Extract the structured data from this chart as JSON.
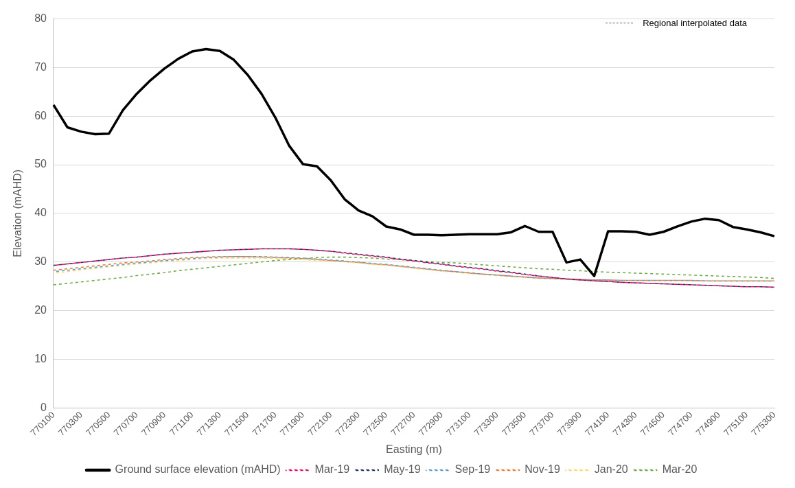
{
  "chart_data": {
    "type": "line",
    "xlabel": "Easting (m)",
    "ylabel": "Elevation (mAHD)",
    "categories": [
      "770100",
      null,
      "770300",
      null,
      "770500",
      null,
      "770700",
      null,
      "770900",
      null,
      "771100",
      null,
      "771300",
      null,
      "771500",
      null,
      "771700",
      null,
      "771900",
      null,
      "772100",
      null,
      "772300",
      null,
      "772500",
      null,
      "772700",
      null,
      "772900",
      null,
      "773100",
      null,
      "773300",
      null,
      "773500",
      null,
      "773700",
      null,
      "773900",
      null,
      "774100",
      null,
      "774300",
      null,
      "774500",
      null,
      "774700",
      null,
      "774900",
      null,
      "775100",
      null,
      "775300"
    ],
    "series": [
      {
        "name": "Ground surface elevation (mAHD)",
        "color": "#000000",
        "line_style": "solid",
        "values": [
          62.3,
          57.7,
          56.8,
          56.3,
          56.4,
          61.2,
          64.6,
          67.4,
          69.8,
          71.8,
          73.3,
          73.8,
          73.4,
          71.6,
          68.5,
          64.6,
          59.7,
          53.9,
          50.1,
          49.7,
          46.8,
          42.9,
          40.6,
          39.4,
          37.3,
          36.7,
          35.6,
          35.6,
          35.5,
          35.6,
          35.7,
          35.7,
          35.7,
          36.1,
          37.4,
          36.2,
          36.2,
          29.9,
          30.5,
          27.1,
          36.3,
          36.3,
          36.2,
          35.6,
          36.2,
          37.3,
          38.3,
          38.9,
          38.6,
          37.2,
          36.7,
          36.1,
          35.3
        ]
      },
      {
        "name": "Mar-19",
        "color": "#ff0066",
        "line_style": "dashed",
        "values": [
          29.3,
          29.6,
          29.9,
          30.2,
          30.5,
          30.8,
          31.0,
          31.3,
          31.6,
          31.8,
          32.0,
          32.2,
          32.4,
          32.5,
          32.6,
          32.7,
          32.7,
          32.7,
          32.6,
          32.4,
          32.2,
          31.8,
          31.5,
          31.2,
          30.9,
          30.5,
          30.2,
          29.8,
          29.5,
          29.1,
          28.8,
          28.5,
          28.1,
          27.8,
          27.4,
          27.1,
          26.8,
          26.5,
          26.3,
          26.1,
          26.0,
          25.8,
          25.7,
          25.6,
          25.5,
          25.4,
          25.3,
          25.2,
          25.1,
          25.0,
          24.9,
          24.9,
          24.8
        ]
      },
      {
        "name": "May-19",
        "color": "#1f3864",
        "line_style": "dashed",
        "values": [
          29.3,
          29.6,
          29.9,
          30.2,
          30.5,
          30.8,
          31.0,
          31.3,
          31.6,
          31.8,
          32.0,
          32.2,
          32.4,
          32.5,
          32.6,
          32.7,
          32.7,
          32.7,
          32.6,
          32.4,
          32.2,
          31.9,
          31.6,
          31.3,
          31.0,
          30.6,
          30.3,
          29.9,
          29.6,
          29.2,
          28.9,
          28.6,
          28.2,
          27.9,
          27.5,
          27.1,
          26.8,
          26.5,
          26.3,
          26.1,
          26.0,
          25.8,
          25.7,
          25.6,
          25.5,
          25.4,
          25.3,
          25.2,
          25.1,
          25.0,
          24.9,
          24.9,
          24.8
        ]
      },
      {
        "name": "Sep-19",
        "color": "#5b9bd5",
        "line_style": "dashed",
        "values": [
          28.0,
          28.3,
          28.6,
          28.9,
          29.2,
          29.5,
          29.8,
          30.0,
          30.3,
          30.5,
          30.7,
          30.9,
          31.0,
          31.1,
          31.1,
          31.1,
          31.0,
          30.9,
          30.8,
          30.6,
          30.4,
          30.2,
          30.0,
          29.7,
          29.5,
          29.2,
          28.9,
          28.6,
          28.3,
          28.0,
          27.8,
          27.5,
          27.3,
          27.1,
          26.9,
          26.7,
          26.6,
          26.5,
          26.4,
          26.3,
          26.3,
          26.2,
          26.2,
          26.2,
          26.2,
          26.2,
          26.2,
          26.1,
          26.1,
          26.1,
          26.1,
          26.1,
          26.1
        ]
      },
      {
        "name": "Nov-19",
        "color": "#ed7d31",
        "line_style": "dashed",
        "values": [
          28.3,
          28.6,
          28.9,
          29.2,
          29.5,
          29.8,
          30.0,
          30.2,
          30.5,
          30.7,
          30.9,
          31.0,
          31.1,
          31.1,
          31.1,
          31.0,
          30.9,
          30.8,
          30.7,
          30.5,
          30.3,
          30.1,
          29.9,
          29.6,
          29.4,
          29.1,
          28.8,
          28.5,
          28.2,
          28.0,
          27.7,
          27.5,
          27.3,
          27.1,
          26.9,
          26.7,
          26.6,
          26.5,
          26.4,
          26.3,
          26.3,
          26.2,
          26.2,
          26.2,
          26.2,
          26.2,
          26.2,
          26.1,
          26.1,
          26.1,
          26.1,
          26.1,
          26.1
        ]
      },
      {
        "name": "Jan-20",
        "color": "#ffd966",
        "line_style": "dashed",
        "values": [
          27.7,
          28.0,
          28.4,
          28.7,
          29.0,
          29.3,
          29.6,
          29.8,
          30.1,
          30.3,
          30.5,
          30.7,
          30.8,
          30.8,
          30.8,
          30.8,
          30.7,
          30.6,
          30.5,
          30.3,
          30.2,
          30.0,
          29.8,
          29.5,
          29.3,
          29.0,
          28.7,
          28.4,
          28.1,
          27.9,
          27.6,
          27.4,
          27.2,
          27.0,
          26.8,
          26.6,
          26.5,
          26.4,
          26.3,
          26.2,
          26.2,
          26.2,
          26.1,
          26.1,
          26.1,
          26.1,
          26.1,
          26.1,
          26.0,
          26.0,
          26.0,
          26.0,
          26.0
        ]
      },
      {
        "name": "Mar-20",
        "color": "#70ad47",
        "line_style": "dashed",
        "values": [
          25.3,
          25.6,
          25.9,
          26.2,
          26.5,
          26.8,
          27.2,
          27.5,
          27.8,
          28.2,
          28.5,
          28.8,
          29.1,
          29.4,
          29.7,
          30.0,
          30.3,
          30.5,
          30.7,
          30.9,
          31.0,
          31.0,
          30.9,
          30.8,
          30.6,
          30.5,
          30.3,
          30.1,
          29.9,
          29.8,
          29.6,
          29.4,
          29.2,
          29.0,
          28.8,
          28.6,
          28.5,
          28.3,
          28.2,
          28.0,
          27.9,
          27.8,
          27.7,
          27.6,
          27.5,
          27.4,
          27.3,
          27.2,
          27.1,
          27.0,
          26.9,
          26.8,
          26.6
        ]
      }
    ],
    "ylim": [
      0,
      80
    ],
    "yticks": [
      0,
      10,
      20,
      30,
      40,
      50,
      60,
      70,
      80
    ],
    "grid": "y",
    "legend": "bottom",
    "marker": "none",
    "annotations": [
      "Regional interpolated data"
    ]
  }
}
